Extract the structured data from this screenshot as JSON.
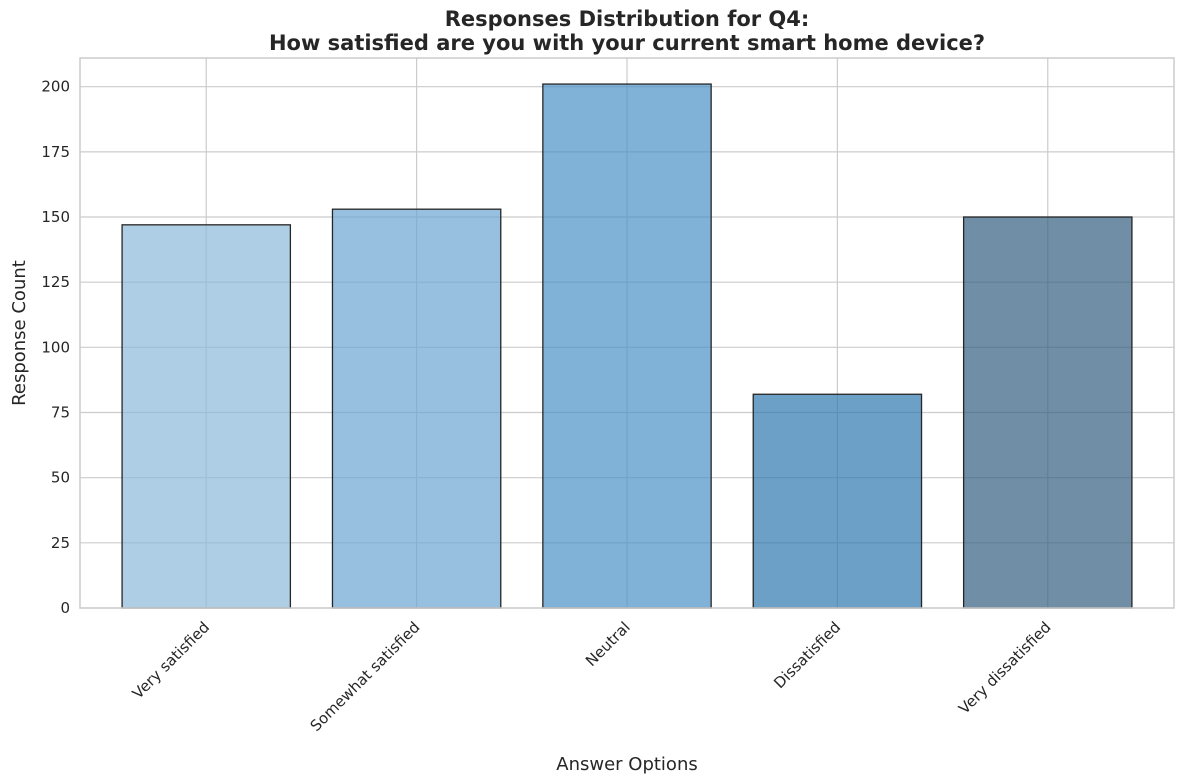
{
  "chart_data": {
    "type": "bar",
    "title_line1": "Responses Distribution for Q4:",
    "title_line2": "How satisfied are you with your current smart home device?",
    "xlabel": "Answer Options",
    "ylabel": "Response Count",
    "categories": [
      "Very satisfied",
      "Somewhat satisfied",
      "Neutral",
      "Dissatisfied",
      "Very dissatisfied"
    ],
    "values": [
      147,
      153,
      201,
      82,
      150
    ],
    "colors": [
      "#8cb9da",
      "#6ba4d1",
      "#4a91c8",
      "#2f78ae",
      "#335f80"
    ],
    "ylim": [
      0,
      211
    ],
    "yticks": [
      0,
      25,
      50,
      75,
      100,
      125,
      150,
      175,
      200
    ],
    "grid": true,
    "legend": "none"
  }
}
